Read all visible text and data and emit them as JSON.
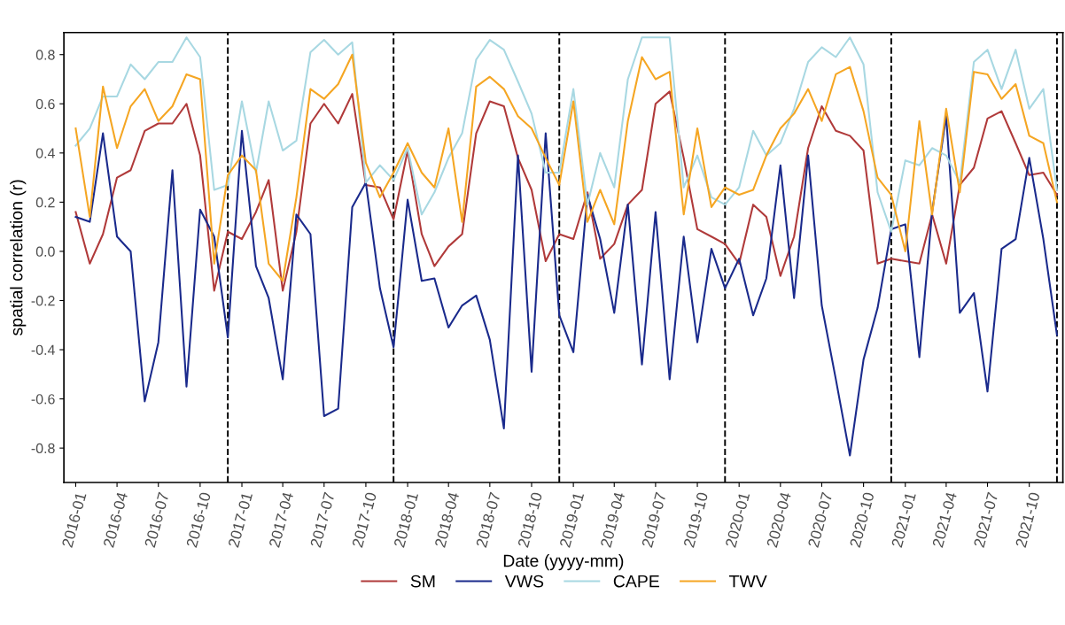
{
  "chart_data": {
    "type": "line",
    "xlabel": "Date (yyyy-mm)",
    "ylabel": "spatial correlation (r)",
    "x": [
      "2016-01",
      "2016-02",
      "2016-03",
      "2016-04",
      "2016-05",
      "2016-06",
      "2016-07",
      "2016-08",
      "2016-09",
      "2016-10",
      "2016-11",
      "2016-12",
      "2017-01",
      "2017-02",
      "2017-03",
      "2017-04",
      "2017-05",
      "2017-06",
      "2017-07",
      "2017-08",
      "2017-09",
      "2017-10",
      "2017-11",
      "2017-12",
      "2018-01",
      "2018-02",
      "2018-03",
      "2018-04",
      "2018-05",
      "2018-06",
      "2018-07",
      "2018-08",
      "2018-09",
      "2018-10",
      "2018-11",
      "2018-12",
      "2019-01",
      "2019-02",
      "2019-03",
      "2019-04",
      "2019-05",
      "2019-06",
      "2019-07",
      "2019-08",
      "2019-09",
      "2019-10",
      "2019-11",
      "2019-12",
      "2020-01",
      "2020-02",
      "2020-03",
      "2020-04",
      "2020-05",
      "2020-06",
      "2020-07",
      "2020-08",
      "2020-09",
      "2020-10",
      "2020-11",
      "2020-12",
      "2021-01",
      "2021-02",
      "2021-03",
      "2021-04",
      "2021-05",
      "2021-06",
      "2021-07",
      "2021-08",
      "2021-09",
      "2021-10",
      "2021-11",
      "2021-12"
    ],
    "series": [
      {
        "name": "SM",
        "color": "#b03a3a",
        "values": [
          0.16,
          -0.05,
          0.07,
          0.3,
          0.33,
          0.49,
          0.52,
          0.52,
          0.6,
          0.39,
          -0.16,
          0.08,
          0.05,
          0.16,
          0.29,
          -0.16,
          0.08,
          0.52,
          0.6,
          0.52,
          0.64,
          0.27,
          0.26,
          0.13,
          0.41,
          0.07,
          -0.06,
          0.02,
          0.07,
          0.48,
          0.61,
          0.59,
          0.38,
          0.25,
          -0.04,
          0.07,
          0.05,
          0.24,
          -0.03,
          0.03,
          0.19,
          0.25,
          0.6,
          0.65,
          0.38,
          0.09,
          0.06,
          0.03,
          -0.05,
          0.19,
          0.14,
          -0.1,
          0.06,
          0.42,
          0.59,
          0.49,
          0.47,
          0.41,
          -0.05,
          -0.03,
          -0.04,
          -0.05,
          0.15,
          -0.05,
          0.27,
          0.34,
          0.54,
          0.57,
          0.44,
          0.31,
          0.32,
          0.23
        ]
      },
      {
        "name": "VWS",
        "color": "#1a2a8c",
        "values": [
          0.14,
          0.12,
          0.48,
          0.06,
          0.0,
          -0.61,
          -0.37,
          0.33,
          -0.55,
          0.17,
          0.06,
          -0.35,
          0.49,
          -0.06,
          -0.19,
          -0.52,
          0.15,
          0.07,
          -0.67,
          -0.64,
          0.18,
          0.28,
          -0.15,
          -0.39,
          0.21,
          -0.12,
          -0.11,
          -0.31,
          -0.22,
          -0.18,
          -0.36,
          -0.72,
          0.39,
          -0.49,
          0.48,
          -0.26,
          -0.41,
          0.23,
          0.05,
          -0.25,
          0.19,
          -0.46,
          0.16,
          -0.52,
          0.06,
          -0.37,
          0.01,
          -0.15,
          -0.03,
          -0.26,
          -0.11,
          0.35,
          -0.19,
          0.39,
          -0.22,
          -0.52,
          -0.83,
          -0.44,
          -0.23,
          0.09,
          0.11,
          -0.43,
          0.16,
          0.55,
          -0.25,
          -0.17,
          -0.57,
          0.01,
          0.05,
          0.38,
          0.05,
          -0.34
        ]
      },
      {
        "name": "CAPE",
        "color": "#a8d8e2",
        "values": [
          0.43,
          0.5,
          0.63,
          0.63,
          0.76,
          0.7,
          0.77,
          0.77,
          0.87,
          0.79,
          0.25,
          0.27,
          0.61,
          0.32,
          0.61,
          0.41,
          0.45,
          0.81,
          0.86,
          0.8,
          0.85,
          0.28,
          0.35,
          0.29,
          0.42,
          0.15,
          0.24,
          0.38,
          0.48,
          0.78,
          0.86,
          0.82,
          0.69,
          0.56,
          0.32,
          0.32,
          0.66,
          0.19,
          0.4,
          0.26,
          0.7,
          0.87,
          0.87,
          0.87,
          0.26,
          0.39,
          0.22,
          0.19,
          0.26,
          0.49,
          0.39,
          0.44,
          0.58,
          0.77,
          0.83,
          0.79,
          0.87,
          0.76,
          0.24,
          0.08,
          0.37,
          0.35,
          0.42,
          0.39,
          0.28,
          0.77,
          0.82,
          0.66,
          0.82,
          0.58,
          0.66,
          0.25
        ]
      },
      {
        "name": "TWV",
        "color": "#f5a623",
        "values": [
          0.5,
          0.14,
          0.67,
          0.42,
          0.59,
          0.66,
          0.53,
          0.59,
          0.72,
          0.7,
          -0.05,
          0.31,
          0.39,
          0.33,
          -0.05,
          -0.12,
          0.22,
          0.66,
          0.62,
          0.68,
          0.8,
          0.36,
          0.22,
          0.32,
          0.44,
          0.32,
          0.26,
          0.5,
          0.12,
          0.67,
          0.71,
          0.66,
          0.55,
          0.5,
          0.38,
          0.27,
          0.61,
          0.12,
          0.25,
          0.11,
          0.53,
          0.79,
          0.7,
          0.73,
          0.15,
          0.5,
          0.18,
          0.26,
          0.23,
          0.25,
          0.39,
          0.5,
          0.56,
          0.66,
          0.53,
          0.72,
          0.75,
          0.57,
          0.3,
          0.23,
          0.0,
          0.53,
          0.15,
          0.58,
          0.24,
          0.73,
          0.72,
          0.62,
          0.68,
          0.47,
          0.44,
          0.2
        ]
      }
    ],
    "xlim": [
      "2015-12-06",
      "2021-12-14"
    ],
    "xticks": [
      "2016-01",
      "2016-04",
      "2016-07",
      "2016-10",
      "2017-01",
      "2017-04",
      "2017-07",
      "2017-10",
      "2018-01",
      "2018-04",
      "2018-07",
      "2018-10",
      "2019-01",
      "2019-04",
      "2019-07",
      "2019-10",
      "2020-01",
      "2020-04",
      "2020-07",
      "2020-10",
      "2021-01",
      "2021-04",
      "2021-07",
      "2021-10"
    ],
    "ylim": [
      -0.94,
      0.89
    ],
    "yticks": [
      -0.8,
      -0.6,
      -0.4,
      -0.2,
      {
        "value": 0,
        "label": "0.0"
      },
      0.2,
      0.4,
      0.6,
      0.8
    ],
    "ref_lines": [
      {
        "axis": "x",
        "value": "2016-12",
        "color": "#000000",
        "line_style": "dashed"
      },
      {
        "axis": "x",
        "value": "2017-12",
        "color": "#000000",
        "line_style": "dashed"
      },
      {
        "axis": "x",
        "value": "2018-12",
        "color": "#000000",
        "line_style": "dashed"
      },
      {
        "axis": "x",
        "value": "2019-12",
        "color": "#000000",
        "line_style": "dashed"
      },
      {
        "axis": "x",
        "value": "2020-12",
        "color": "#000000",
        "line_style": "dashed"
      },
      {
        "axis": "x",
        "value": "2021-12",
        "color": "#000000",
        "line_style": "dashed"
      }
    ],
    "grid": false,
    "legend": "bottom",
    "marker": "none",
    "line_style": "solid"
  }
}
